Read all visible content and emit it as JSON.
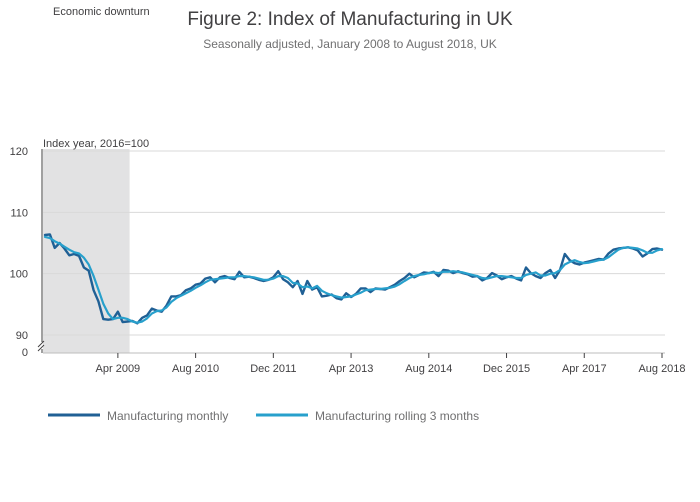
{
  "chart_data": {
    "type": "line",
    "title": "Figure 2: Index of Manufacturing in UK",
    "subtitle": "Seasonally adjusted, January 2008 to August 2018, UK",
    "annotation": "Economic downturn",
    "shaded_period": {
      "start": "Jan 2008",
      "end": "Jun 2009"
    },
    "ylabel": "Index year, 2016=100",
    "ylim": [
      88,
      120
    ],
    "y_ticks": [
      "120",
      "110",
      "100",
      "90",
      "0"
    ],
    "y_tick_values": [
      120,
      110,
      100,
      90
    ],
    "axis_break": true,
    "x_ticks": [
      "Apr 2009",
      "Aug 2010",
      "Dec 2011",
      "Apr 2013",
      "Aug 2014",
      "Dec 2015",
      "Apr 2017",
      "Aug 2018"
    ],
    "x_tick_indices": [
      15,
      31,
      47,
      63,
      79,
      95,
      111,
      127
    ],
    "x_start": "Jan 2008",
    "x_end": "Aug 2018",
    "grid": true,
    "legend_position": "bottom",
    "series": [
      {
        "name": "Manufacturing monthly",
        "color": "#206095",
        "values": [
          106.3,
          106.4,
          104.2,
          105.0,
          104.1,
          103.0,
          103.2,
          102.9,
          101.0,
          100.5,
          97.3,
          95.5,
          92.6,
          92.5,
          92.6,
          93.8,
          92.1,
          92.2,
          92.3,
          91.9,
          92.8,
          93.2,
          94.3,
          94.0,
          93.8,
          94.8,
          96.3,
          96.3,
          96.5,
          97.3,
          97.6,
          98.2,
          98.4,
          99.2,
          99.4,
          98.6,
          99.4,
          99.6,
          99.3,
          99.1,
          100.3,
          99.4,
          99.5,
          99.3,
          99.0,
          98.8,
          99.0,
          99.4,
          100.4,
          99.1,
          98.6,
          97.8,
          98.8,
          96.7,
          98.8,
          97.4,
          97.8,
          96.3,
          96.4,
          96.6,
          96.0,
          95.8,
          96.8,
          96.2,
          96.7,
          97.6,
          97.6,
          97.0,
          97.6,
          97.5,
          97.4,
          97.8,
          98.2,
          98.8,
          99.3,
          100.0,
          99.4,
          99.8,
          100.2,
          100.1,
          100.3,
          99.6,
          100.6,
          100.5,
          100.1,
          100.4,
          100.1,
          99.9,
          99.5,
          99.6,
          98.9,
          99.3,
          100.1,
          99.7,
          99.1,
          99.4,
          99.6,
          99.2,
          98.9,
          101.0,
          100.1,
          99.6,
          99.3,
          100.1,
          100.6,
          99.3,
          100.6,
          103.2,
          102.2,
          101.7,
          101.5,
          101.8,
          102.0,
          102.2,
          102.4,
          102.3,
          103.3,
          103.9,
          104.1,
          104.2,
          104.3,
          104.1,
          103.8,
          102.8,
          103.3,
          104.0,
          104.1,
          103.9
        ]
      },
      {
        "name": "Manufacturing rolling 3 months",
        "color": "#27A0CC",
        "values": [
          106.0,
          105.8,
          105.3,
          104.9,
          104.4,
          103.9,
          103.5,
          103.3,
          102.6,
          101.5,
          99.6,
          97.4,
          95.1,
          93.5,
          92.6,
          92.8,
          92.8,
          92.6,
          92.2,
          92.0,
          92.2,
          92.7,
          93.5,
          93.9,
          94.0,
          94.5,
          95.4,
          96.0,
          96.4,
          96.8,
          97.2,
          97.7,
          98.1,
          98.6,
          99.0,
          99.1,
          99.2,
          99.3,
          99.4,
          99.4,
          99.6,
          99.6,
          99.5,
          99.4,
          99.2,
          99.0,
          99.0,
          99.2,
          99.6,
          99.6,
          99.3,
          98.5,
          98.4,
          97.8,
          97.9,
          97.6,
          98.0,
          97.2,
          96.8,
          96.5,
          96.3,
          96.1,
          96.2,
          96.3,
          96.6,
          96.9,
          97.3,
          97.4,
          97.5,
          97.5,
          97.6,
          97.7,
          97.9,
          98.3,
          98.8,
          99.3,
          99.6,
          99.8,
          99.9,
          100.1,
          100.2,
          100.1,
          100.3,
          100.3,
          100.4,
          100.3,
          100.2,
          100.0,
          99.8,
          99.6,
          99.3,
          99.2,
          99.4,
          99.6,
          99.6,
          99.5,
          99.4,
          99.3,
          99.3,
          99.8,
          100.0,
          100.2,
          99.7,
          99.7,
          100.0,
          100.1,
          100.6,
          101.5,
          101.9,
          102.2,
          101.9,
          101.7,
          101.8,
          102.0,
          102.2,
          102.3,
          102.7,
          103.3,
          103.9,
          104.2,
          104.3,
          104.2,
          104.1,
          103.8,
          103.4,
          103.4,
          103.8,
          104.0
        ]
      }
    ]
  }
}
